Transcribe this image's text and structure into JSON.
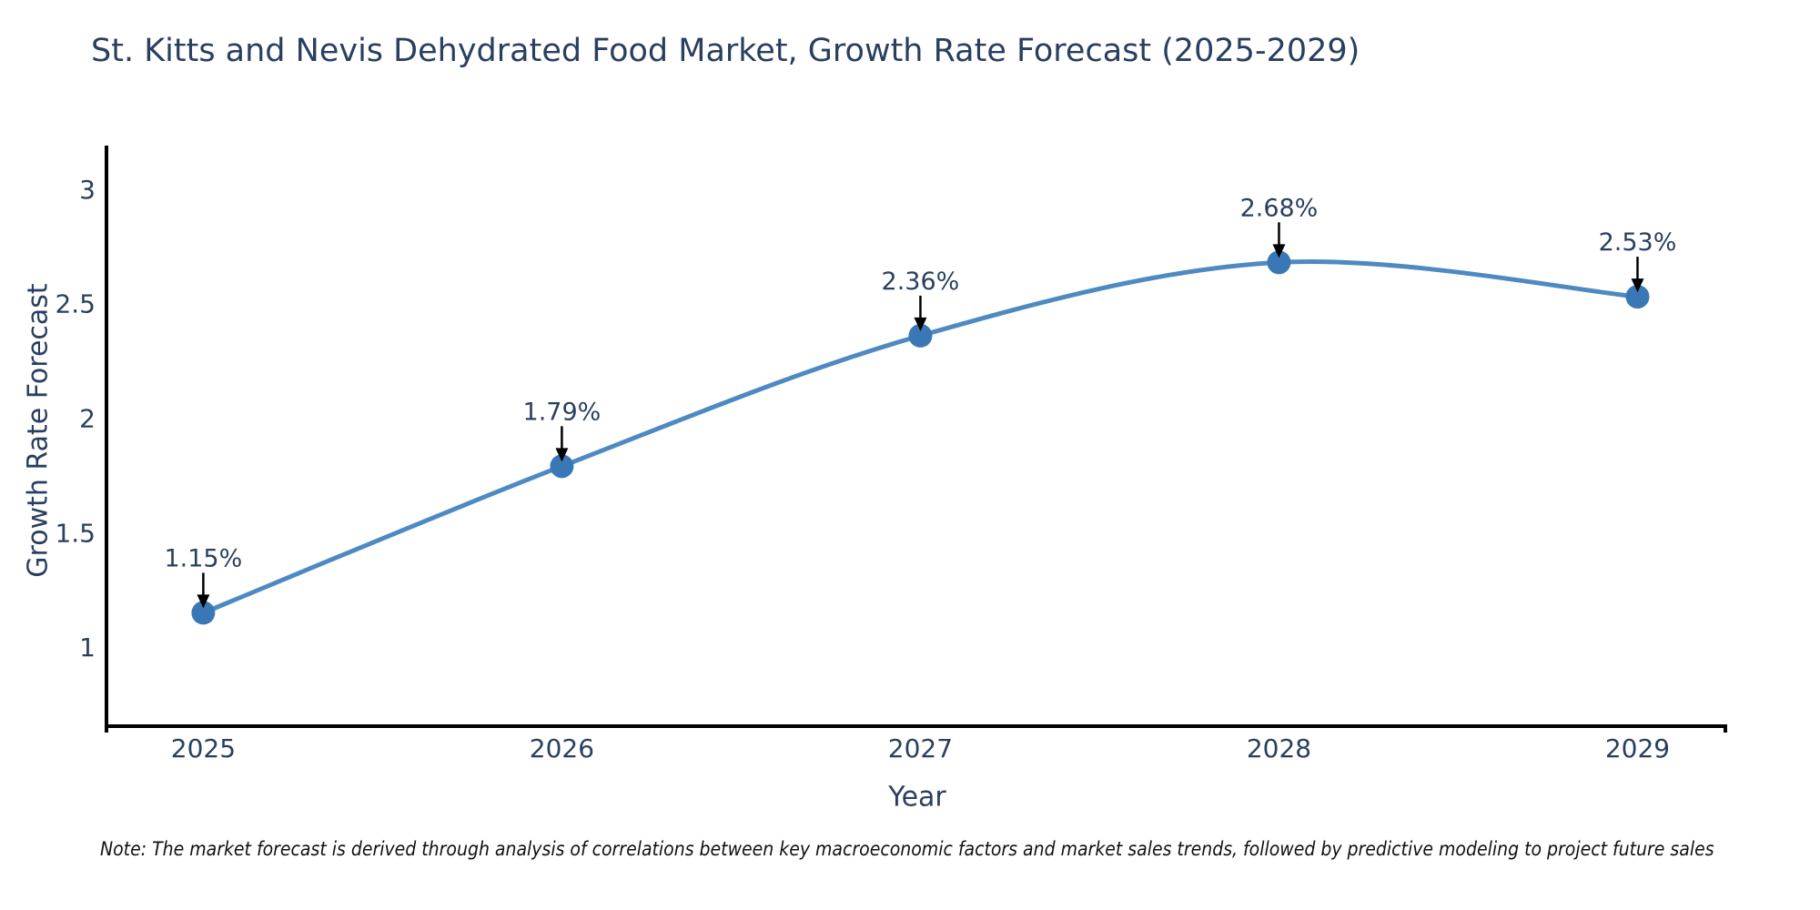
{
  "page": {
    "background": "#ffffff"
  },
  "chart_data": {
    "type": "line",
    "title": "St. Kitts and Nevis Dehydrated Food Market, Growth Rate Forecast (2025-2029)",
    "xlabel": "Year",
    "ylabel": "Growth Rate Forecast",
    "categories": [
      2025,
      2026,
      2027,
      2028,
      2029
    ],
    "series": [
      {
        "name": "Growth Rate Forecast",
        "values": [
          1.15,
          1.79,
          2.36,
          2.68,
          2.53
        ],
        "point_labels": [
          "1.15%",
          "1.79%",
          "2.36%",
          "2.68%",
          "2.53%"
        ]
      }
    ],
    "yticks": [
      1,
      1.5,
      2,
      2.5,
      3
    ],
    "ytick_labels": [
      "1",
      "1.5",
      "2",
      "2.5",
      "3"
    ],
    "ylim": [
      0.655,
      3.19
    ],
    "xlim": [
      2024.73,
      2029.25
    ],
    "grid": false,
    "legend_position": "none",
    "line_smoothing": true,
    "annotation_arrows": true,
    "colors": {
      "line": "#4e8ac1",
      "marker": "#3a78b5",
      "axis": "#000000",
      "tick_label": "#2a3f5f",
      "annotation_text": "#2a3f5f",
      "arrow": "#000000",
      "title_text": "#2a3f5f"
    },
    "note": "Note: The market forecast is derived through analysis of correlations between key macroeconomic factors and market sales trends, followed by predictive modeling to project future sales"
  }
}
